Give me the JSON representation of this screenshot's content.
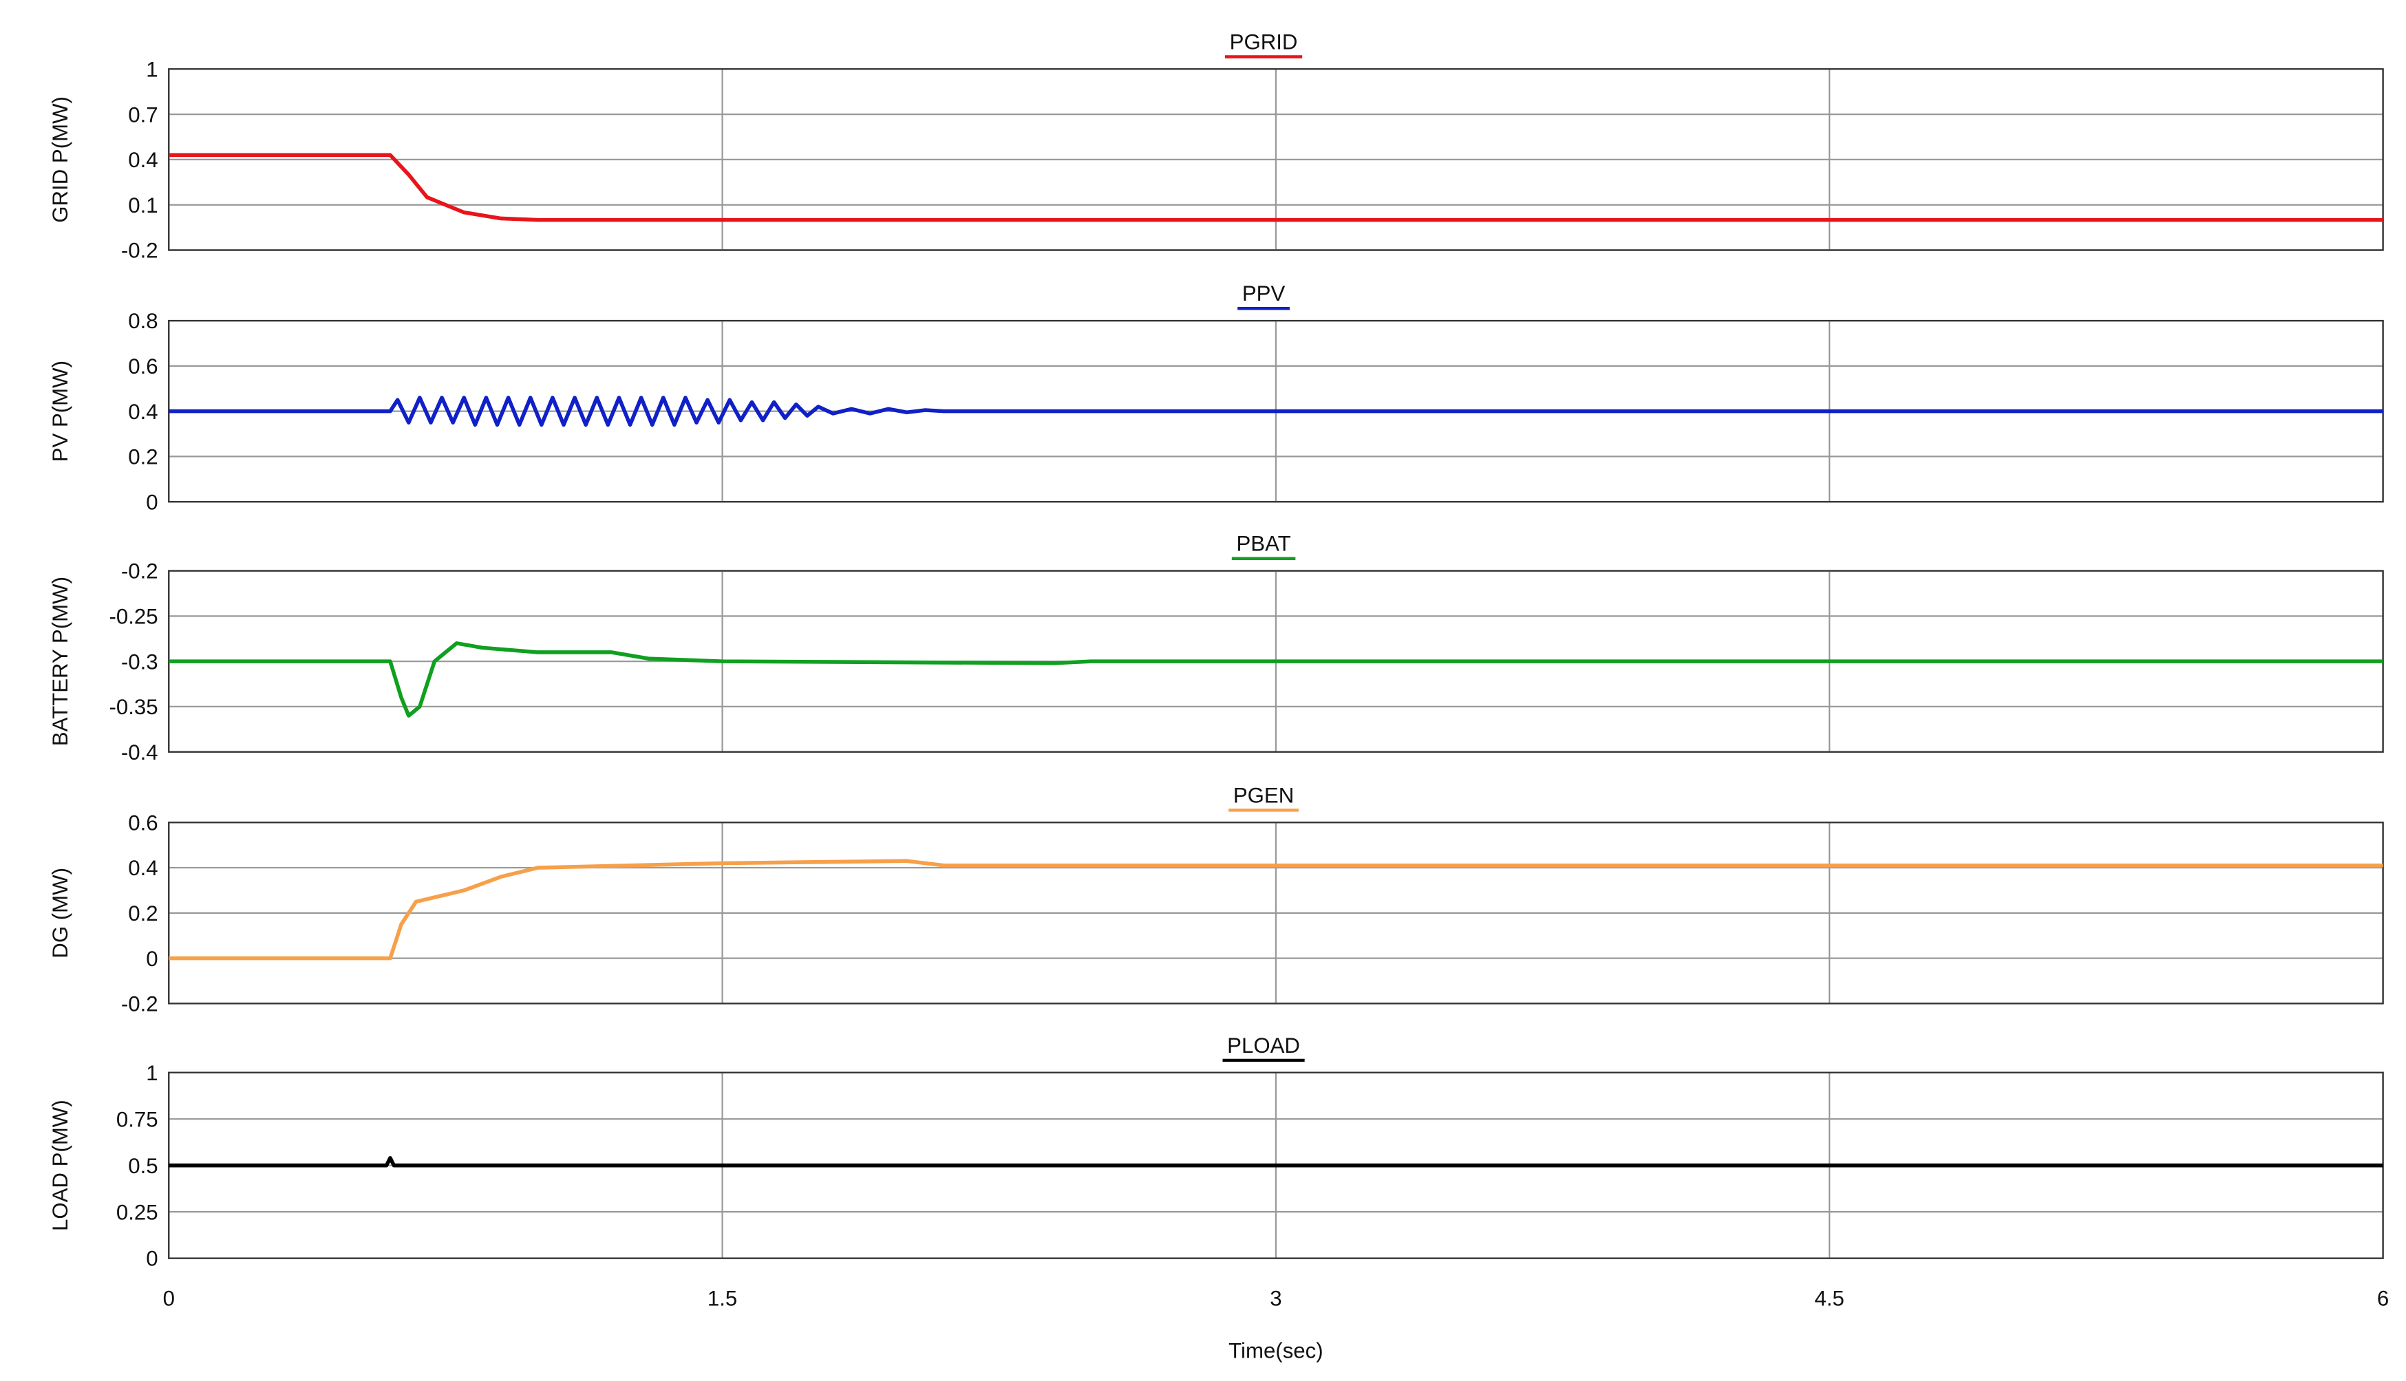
{
  "chart_data": [
    {
      "type": "line",
      "title": "PGRID",
      "ylabel": "GRID P(MW)",
      "color": "#e8141c",
      "grid": true,
      "x": [
        0,
        0.6,
        0.65,
        0.7,
        0.8,
        0.9,
        1.0,
        6
      ],
      "values": [
        0.43,
        0.43,
        0.3,
        0.15,
        0.05,
        0.01,
        0,
        0
      ],
      "xlim": [
        0,
        6
      ],
      "ylim": [
        -0.2,
        1
      ],
      "yticks": [
        -0.2,
        0.1,
        0.4,
        0.7,
        1
      ]
    },
    {
      "type": "line",
      "title": "PPV",
      "ylabel": "PV P(MW)",
      "color": "#1020c8",
      "grid": true,
      "x": [
        0,
        0.6,
        0.62,
        0.65,
        0.68,
        0.71,
        0.74,
        0.77,
        0.8,
        0.83,
        0.86,
        0.89,
        0.92,
        0.95,
        0.98,
        1.01,
        1.04,
        1.07,
        1.1,
        1.13,
        1.16,
        1.19,
        1.22,
        1.25,
        1.28,
        1.31,
        1.34,
        1.37,
        1.4,
        1.43,
        1.46,
        1.49,
        1.52,
        1.55,
        1.58,
        1.61,
        1.64,
        1.67,
        1.7,
        1.73,
        1.76,
        1.8,
        1.85,
        1.9,
        1.95,
        2.0,
        2.05,
        2.1,
        6
      ],
      "values": [
        0.4,
        0.4,
        0.45,
        0.35,
        0.46,
        0.35,
        0.46,
        0.35,
        0.46,
        0.34,
        0.46,
        0.34,
        0.46,
        0.34,
        0.46,
        0.34,
        0.46,
        0.34,
        0.46,
        0.34,
        0.46,
        0.34,
        0.46,
        0.34,
        0.46,
        0.34,
        0.46,
        0.34,
        0.46,
        0.35,
        0.45,
        0.35,
        0.45,
        0.36,
        0.44,
        0.36,
        0.44,
        0.37,
        0.43,
        0.38,
        0.42,
        0.39,
        0.41,
        0.39,
        0.41,
        0.395,
        0.405,
        0.4,
        0.4
      ],
      "xlim": [
        0,
        6
      ],
      "ylim": [
        0,
        0.8
      ],
      "yticks": [
        0,
        0.2,
        0.4,
        0.6,
        0.8
      ]
    },
    {
      "type": "line",
      "title": "PBAT",
      "ylabel": "BATTERY P(MW)",
      "color": "#10a020",
      "grid": true,
      "x": [
        0,
        0.6,
        0.63,
        0.65,
        0.68,
        0.72,
        0.78,
        0.85,
        1.0,
        1.2,
        1.3,
        1.5,
        2.4,
        2.5,
        6
      ],
      "values": [
        -0.3,
        -0.3,
        -0.34,
        -0.36,
        -0.35,
        -0.3,
        -0.28,
        -0.285,
        -0.29,
        -0.29,
        -0.297,
        -0.3,
        -0.302,
        -0.3,
        -0.3
      ],
      "xlim": [
        0,
        6
      ],
      "ylim": [
        -0.4,
        -0.2
      ],
      "yticks": [
        -0.4,
        -0.35,
        -0.3,
        -0.25,
        -0.2
      ]
    },
    {
      "type": "line",
      "title": "PGEN",
      "ylabel": "DG (MW)",
      "color": "#f7a04a",
      "grid": true,
      "x": [
        0,
        0.6,
        0.63,
        0.67,
        0.8,
        0.9,
        1.0,
        1.5,
        2.0,
        2.1,
        6
      ],
      "values": [
        0,
        0,
        0.15,
        0.25,
        0.3,
        0.36,
        0.4,
        0.42,
        0.43,
        0.41,
        0.41
      ],
      "xlim": [
        0,
        6
      ],
      "ylim": [
        -0.2,
        0.6
      ],
      "yticks": [
        -0.2,
        0,
        0.2,
        0.4,
        0.6
      ]
    },
    {
      "type": "line",
      "title": "PLOAD",
      "ylabel": "LOAD P(MW)",
      "color": "#000000",
      "grid": true,
      "x": [
        0,
        0.59,
        0.6,
        0.61,
        6
      ],
      "values": [
        0.5,
        0.5,
        0.54,
        0.5,
        0.5
      ],
      "xlim": [
        0,
        6
      ],
      "ylim": [
        0,
        1
      ],
      "yticks": [
        0,
        0.25,
        0.5,
        0.75,
        1
      ],
      "xticks": [
        0,
        1.5,
        3,
        4.5,
        6
      ],
      "xlabel": "Time(sec)"
    }
  ]
}
